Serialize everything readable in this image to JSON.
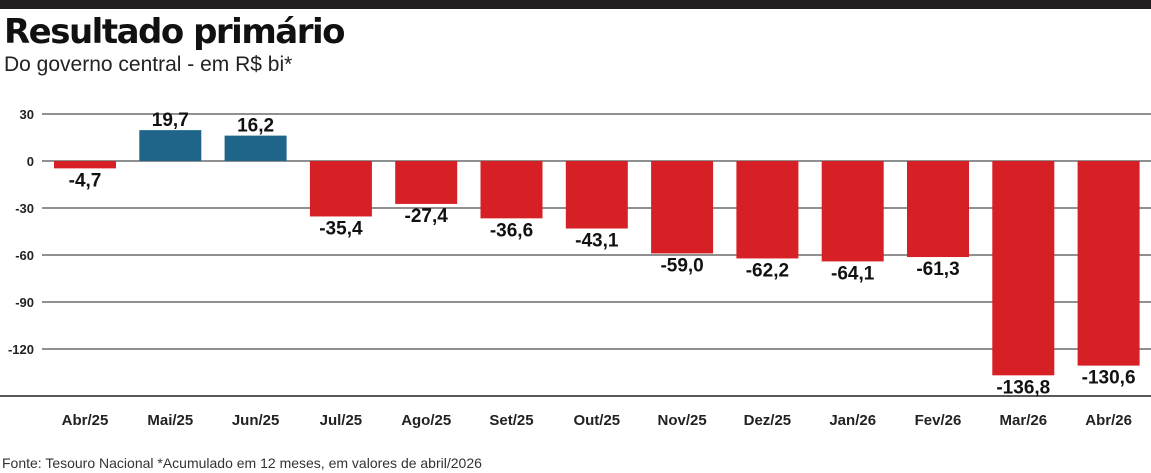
{
  "header": {
    "title": "Resultado primário",
    "subtitle": "Do governo central - em R$ bi*"
  },
  "footer": {
    "source": "Fonte: Tesouro Nacional *Acumulado em 12 meses, em valores de abril/2026"
  },
  "colors": {
    "positive": "#1e6589",
    "negative": "#d71f26",
    "rule": "#231f20",
    "grid": "#222222"
  },
  "chart_data": {
    "type": "bar",
    "title": "Resultado primário",
    "subtitle": "Do governo central - em R$ bi*",
    "categories": [
      "Abr/25",
      "Mai/25",
      "Jun/25",
      "Jul/25",
      "Ago/25",
      "Set/25",
      "Out/25",
      "Nov/25",
      "Dez/25",
      "Jan/26",
      "Fev/26",
      "Mar/26",
      "Abr/26"
    ],
    "values": [
      -4.7,
      19.7,
      16.2,
      -35.4,
      -27.4,
      -36.6,
      -43.1,
      -59.0,
      -62.2,
      -64.1,
      -61.3,
      -136.8,
      -130.6
    ],
    "value_labels": [
      "-4,7",
      "19,7",
      "16,2",
      "-35,4",
      "-27,4",
      "-36,6",
      "-43,1",
      "-59,0",
      "-62,2",
      "-64,1",
      "-61,3",
      "-136,8",
      "-130,6"
    ],
    "yticks": [
      30,
      0,
      -30,
      -60,
      -90,
      -120
    ],
    "ytick_labels": [
      "30",
      "0",
      "-30",
      "-60",
      "-90",
      "-120"
    ],
    "ylim": [
      -150,
      30
    ],
    "grid": true,
    "legend": "none"
  }
}
